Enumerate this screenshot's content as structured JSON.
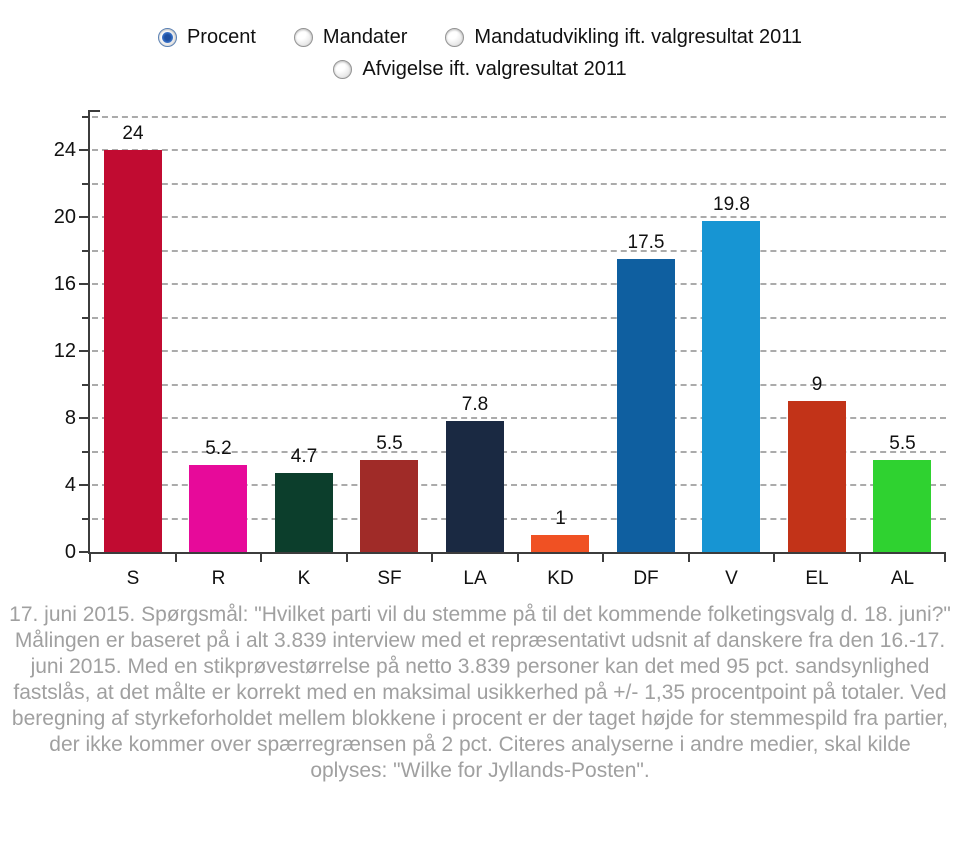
{
  "controls": {
    "options": [
      {
        "id": "procent",
        "label": "Procent",
        "selected": true
      },
      {
        "id": "mandater",
        "label": "Mandater",
        "selected": false
      },
      {
        "id": "mandatudvikling",
        "label": "Mandatudvikling ift. valgresultat 2011",
        "selected": false
      },
      {
        "id": "afvigelse",
        "label": "Afvigelse ift. valgresultat 2011",
        "selected": false
      }
    ]
  },
  "chart_data": {
    "type": "bar",
    "categories": [
      "S",
      "R",
      "K",
      "SF",
      "LA",
      "KD",
      "DF",
      "V",
      "EL",
      "AL"
    ],
    "values": [
      24,
      5.2,
      4.7,
      5.5,
      7.8,
      1,
      17.5,
      19.8,
      9,
      5.5
    ],
    "value_labels": [
      "24",
      "5.2",
      "4.7",
      "5.5",
      "7.8",
      "1",
      "17.5",
      "19.8",
      "9",
      "5.5"
    ],
    "bar_colors": [
      "#c10b31",
      "#e70a9a",
      "#0c3e2c",
      "#a02b28",
      "#1a2942",
      "#f05123",
      "#0f5fa0",
      "#1795d3",
      "#c23318",
      "#2fd230"
    ],
    "xlabel": "",
    "ylabel": "",
    "ylim": [
      0,
      26.4
    ],
    "yticks_labeled": [
      0,
      4,
      8,
      12,
      16,
      20,
      24
    ],
    "ytick_minor_step": 2,
    "grid": "horizontal dashed gray every 2 units",
    "legend": "none"
  },
  "footnote": {
    "text": "17. juni 2015. Spørgsmål: \"Hvilket parti vil du stemme på til det kommende folketingsvalg d. 18. juni?\" Målingen er baseret på i alt 3.839 interview med et repræsentativt udsnit af danskere fra den 16.-17. juni 2015. Med en stikprøvestørrelse på netto 3.839 personer kan det med 95 pct. sandsynlighed fastslås, at det målte er korrekt med en maksimal usikkerhed på +/- 1,35 procentpoint på totaler. Ved beregning af styrkeforholdet mellem blokkene i procent er der taget højde for stemmespild fra partier, der ikke kommer over spærregrænsen på 2 pct. Citeres analyserne i andre medier, skal kilde oplyses: \"Wilke for Jyllands-Posten\"."
  },
  "colors": {
    "background": "#ffffff",
    "axis": "#3c3c3c",
    "grid": "#ababab",
    "value_label": "#111111",
    "footnote_text": "#a0a0a0",
    "radio_selected": "#1d4fa1"
  }
}
